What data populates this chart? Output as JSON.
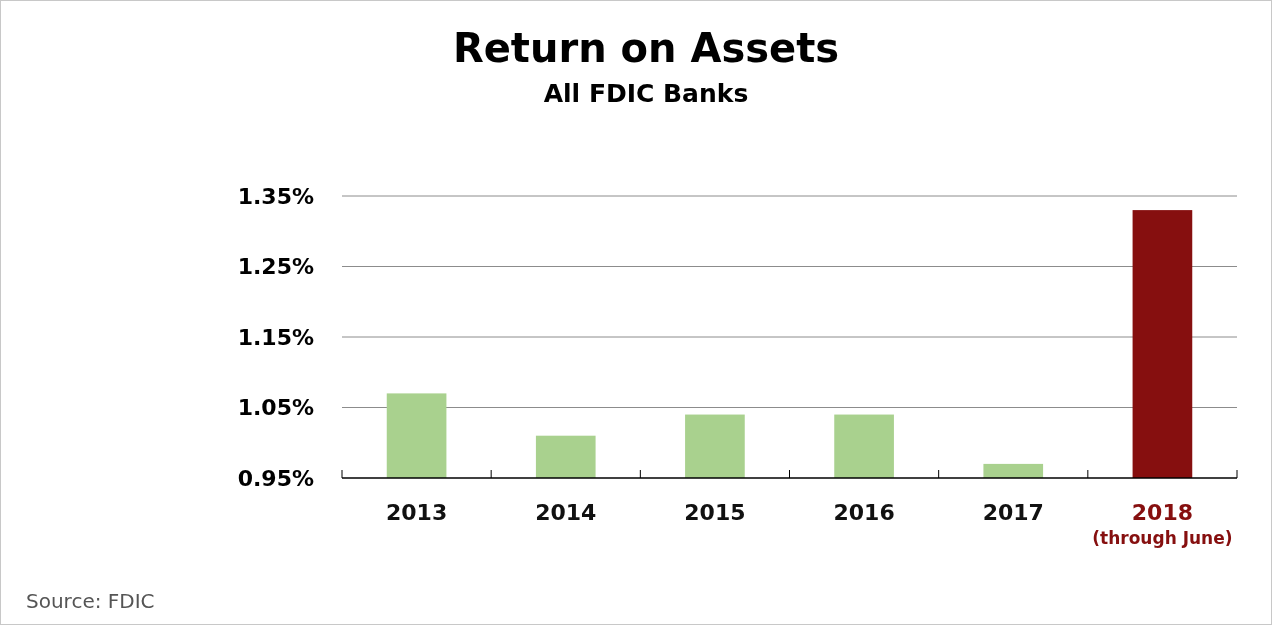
{
  "chart_data": {
    "type": "bar",
    "title": "Return on Assets",
    "subtitle": "All FDIC Banks",
    "categories": [
      "2013",
      "2014",
      "2015",
      "2016",
      "2017",
      "2018\n(through June)"
    ],
    "values": [
      1.07,
      1.01,
      1.04,
      1.04,
      0.97,
      1.33
    ],
    "colors": [
      "#a9d18e",
      "#a9d18e",
      "#a9d18e",
      "#a9d18e",
      "#a9d18e",
      "#860f0f"
    ],
    "ylim": [
      0.95,
      1.35
    ],
    "yticks": [
      {
        "value": 0.95,
        "label": "0.95%"
      },
      {
        "value": 1.05,
        "label": "1.05%"
      },
      {
        "value": 1.15,
        "label": "1.15%"
      },
      {
        "value": 1.25,
        "label": "1.25%"
      },
      {
        "value": 1.35,
        "label": "1.35%"
      }
    ],
    "grid": "y",
    "annotations": [
      "Source:  FDIC"
    ]
  }
}
